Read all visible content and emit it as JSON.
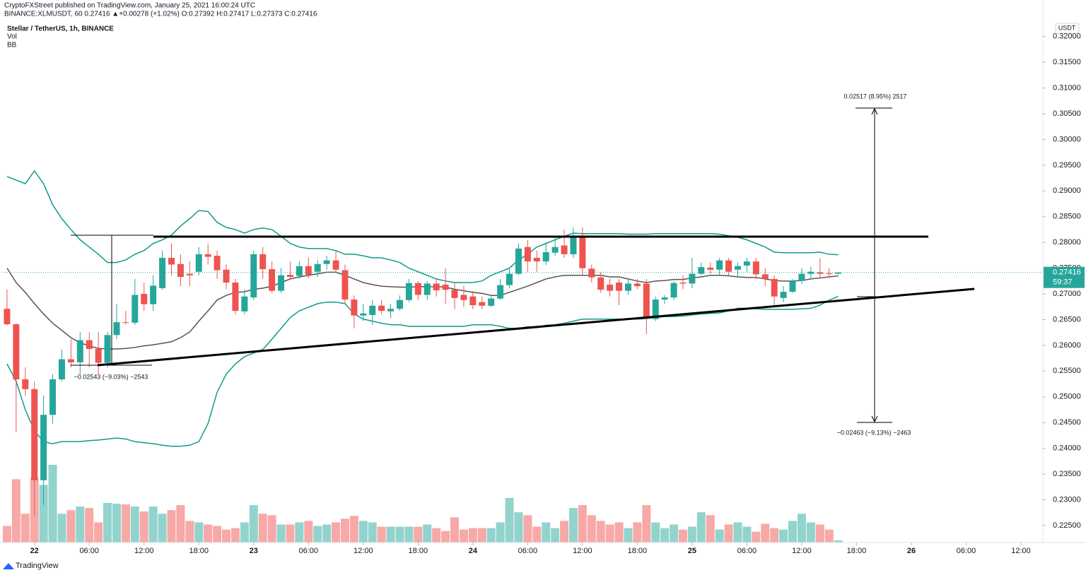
{
  "header": {
    "publisher": "CryptoFXStreet published on TradingView.com, January 25, 2021 16:00:24 UTC",
    "symbol_line": "BINANCE:XLMUSDT, 60  0.27416 ▲+0.00278 (+1.02%) O:0.27392 H:0.27417 L:0.27373 C:0.27416",
    "title": "Stellar / TetherUS, 1h, BINANCE",
    "indicators": [
      "Vol",
      "BB"
    ]
  },
  "chart_data": {
    "type": "candlestick",
    "currency": "USDT",
    "colors": {
      "up": "#26a69a",
      "down": "#ef5350",
      "volume_up": "#93d3cd",
      "volume_down": "#f7a9a7",
      "bands": "#0f9a8a",
      "basis": "#555555"
    },
    "open": [
      0.2671,
      0.2641,
      0.2534,
      0.2515,
      0.2338,
      0.2465,
      0.2534,
      0.2573,
      0.2567,
      0.261,
      0.2593,
      0.2566,
      0.262,
      0.2645,
      0.2644,
      0.27,
      0.268,
      0.2711,
      0.277,
      0.2758,
      0.2739,
      0.2743,
      0.2777,
      0.2774,
      0.2747,
      0.2722,
      0.2666,
      0.2693,
      0.2777,
      0.2748,
      0.2706,
      0.2737,
      0.2735,
      0.2754,
      0.2743,
      0.2758,
      0.2765,
      0.2746,
      0.2689,
      0.2658,
      0.2659,
      0.2677,
      0.2666,
      0.2671,
      0.2688,
      0.2721,
      0.2698,
      0.272,
      0.2718,
      0.2708,
      0.2698,
      0.2695,
      0.2684,
      0.2677,
      0.2691,
      0.2717,
      0.2739,
      0.2791,
      0.277,
      0.2763,
      0.278,
      0.2794,
      0.2777,
      0.2812,
      0.2749,
      0.2732,
      0.2718,
      0.2722,
      0.2706,
      0.272,
      0.272,
      0.2651,
      0.2689,
      0.2693,
      0.2722,
      0.272,
      0.2739,
      0.2751,
      0.2747,
      0.2765,
      0.2747,
      0.2755,
      0.2763,
      0.2738,
      0.2729,
      0.2692,
      0.2704,
      0.2725,
      0.2739,
      0.2742,
      0.274,
      0.27392
    ],
    "high": [
      0.2709,
      0.2643,
      0.2557,
      0.253,
      0.2503,
      0.2544,
      0.2592,
      0.2612,
      0.2626,
      0.2626,
      0.2626,
      0.2626,
      0.2681,
      0.2667,
      0.2729,
      0.2722,
      0.2736,
      0.2784,
      0.2798,
      0.2777,
      0.2764,
      0.2791,
      0.2798,
      0.2784,
      0.2757,
      0.2729,
      0.2709,
      0.2784,
      0.2791,
      0.2763,
      0.275,
      0.2763,
      0.2763,
      0.277,
      0.2766,
      0.2774,
      0.2784,
      0.2757,
      0.2697,
      0.2681,
      0.2688,
      0.2688,
      0.2681,
      0.2697,
      0.2729,
      0.2725,
      0.2725,
      0.2729,
      0.275,
      0.2722,
      0.2716,
      0.2706,
      0.2695,
      0.2695,
      0.2729,
      0.275,
      0.2798,
      0.2805,
      0.2784,
      0.2798,
      0.2812,
      0.2825,
      0.2829,
      0.2829,
      0.2757,
      0.2743,
      0.2729,
      0.2729,
      0.2729,
      0.2729,
      0.2729,
      0.2695,
      0.2698,
      0.2725,
      0.2736,
      0.277,
      0.2761,
      0.2761,
      0.277,
      0.277,
      0.2761,
      0.277,
      0.277,
      0.275,
      0.2736,
      0.2715,
      0.2729,
      0.275,
      0.2753,
      0.2769,
      0.275,
      0.27417
    ],
    "low": [
      0.2639,
      0.2431,
      0.2502,
      0.2269,
      0.229,
      0.2448,
      0.253,
      0.2557,
      0.2544,
      0.2557,
      0.2544,
      0.2557,
      0.2612,
      0.264,
      0.264,
      0.2667,
      0.2667,
      0.2708,
      0.2736,
      0.2715,
      0.2715,
      0.2736,
      0.2757,
      0.2729,
      0.2709,
      0.266,
      0.266,
      0.2688,
      0.2729,
      0.2702,
      0.2702,
      0.2729,
      0.2729,
      0.273,
      0.2733,
      0.2747,
      0.2743,
      0.2681,
      0.2633,
      0.2647,
      0.264,
      0.266,
      0.2653,
      0.2667,
      0.2684,
      0.2688,
      0.2688,
      0.2695,
      0.2681,
      0.267,
      0.2674,
      0.267,
      0.267,
      0.2674,
      0.2688,
      0.2711,
      0.2736,
      0.2743,
      0.2743,
      0.2756,
      0.2774,
      0.277,
      0.277,
      0.2736,
      0.2722,
      0.2702,
      0.2695,
      0.2678,
      0.2698,
      0.2709,
      0.2622,
      0.2647,
      0.2681,
      0.2688,
      0.2709,
      0.2711,
      0.2736,
      0.2739,
      0.2736,
      0.2736,
      0.2733,
      0.2743,
      0.2729,
      0.2715,
      0.2678,
      0.2684,
      0.2702,
      0.2719,
      0.2729,
      0.2729,
      0.2733,
      0.27373
    ],
    "close": [
      0.2641,
      0.2534,
      0.2515,
      0.2338,
      0.2465,
      0.2534,
      0.2573,
      0.2567,
      0.261,
      0.2593,
      0.2566,
      0.262,
      0.2645,
      0.2644,
      0.2698,
      0.268,
      0.2716,
      0.277,
      0.2757,
      0.2733,
      0.2736,
      0.2777,
      0.2772,
      0.2746,
      0.2722,
      0.2667,
      0.2695,
      0.2777,
      0.2748,
      0.2706,
      0.2736,
      0.2733,
      0.2754,
      0.2737,
      0.2758,
      0.2765,
      0.2747,
      0.2689,
      0.2658,
      0.2662,
      0.2677,
      0.2667,
      0.2671,
      0.2688,
      0.2721,
      0.2698,
      0.272,
      0.2707,
      0.2708,
      0.2692,
      0.2688,
      0.2678,
      0.2677,
      0.2691,
      0.2717,
      0.2739,
      0.2788,
      0.2763,
      0.2763,
      0.2781,
      0.2791,
      0.2777,
      0.2812,
      0.275,
      0.2732,
      0.2708,
      0.2706,
      0.2706,
      0.272,
      0.2715,
      0.2654,
      0.2689,
      0.2693,
      0.2721,
      0.272,
      0.2739,
      0.2752,
      0.2747,
      0.2765,
      0.2743,
      0.2754,
      0.2763,
      0.2738,
      0.2729,
      0.2695,
      0.2704,
      0.2725,
      0.2739,
      0.2743,
      0.2739,
      0.2739,
      0.27416
    ],
    "volume": [
      23,
      88,
      40,
      90,
      80,
      108,
      40,
      45,
      50,
      48,
      28,
      55,
      54,
      53,
      50,
      43,
      50,
      40,
      45,
      52,
      30,
      28,
      25,
      23,
      18,
      20,
      28,
      52,
      40,
      38,
      25,
      25,
      28,
      30,
      23,
      25,
      28,
      33,
      37,
      30,
      28,
      22,
      22,
      22,
      22,
      22,
      25,
      20,
      16,
      35,
      18,
      20,
      20,
      20,
      28,
      62,
      42,
      38,
      22,
      28,
      20,
      30,
      48,
      52,
      38,
      30,
      25,
      28,
      20,
      28,
      52,
      28,
      20,
      25,
      18,
      22,
      42,
      38,
      18,
      25,
      28,
      22,
      15,
      26,
      20,
      18,
      30,
      40,
      28,
      25,
      18,
      3
    ],
    "bb_upper": [
      0.2928,
      0.2921,
      0.2914,
      0.2939,
      0.2914,
      0.2873,
      0.2846,
      0.2825,
      0.2805,
      0.2791,
      0.2777,
      0.2761,
      0.2761,
      0.2766,
      0.2777,
      0.2784,
      0.2798,
      0.2805,
      0.2814,
      0.2832,
      0.2846,
      0.2862,
      0.286,
      0.2839,
      0.2829,
      0.2825,
      0.2818,
      0.2825,
      0.2828,
      0.2825,
      0.2812,
      0.2798,
      0.2791,
      0.2788,
      0.2788,
      0.2788,
      0.2784,
      0.2777,
      0.2777,
      0.2774,
      0.277,
      0.277,
      0.2766,
      0.2761,
      0.275,
      0.2743,
      0.2736,
      0.2729,
      0.2725,
      0.2722,
      0.2722,
      0.2722,
      0.2725,
      0.2736,
      0.2743,
      0.275,
      0.2766,
      0.2777,
      0.2791,
      0.2798,
      0.2805,
      0.2812,
      0.2818,
      0.2817,
      0.2817,
      0.2817,
      0.2817,
      0.2817,
      0.2816,
      0.2816,
      0.2816,
      0.2817,
      0.2817,
      0.2817,
      0.2817,
      0.2817,
      0.2817,
      0.2817,
      0.2816,
      0.2813,
      0.281,
      0.2805,
      0.2798,
      0.2791,
      0.2781,
      0.278,
      0.278,
      0.278,
      0.278,
      0.2781,
      0.2777,
      0.2776
    ],
    "bb_middle": [
      0.275,
      0.2722,
      0.2703,
      0.2681,
      0.2661,
      0.2643,
      0.2629,
      0.2615,
      0.2605,
      0.2599,
      0.2594,
      0.2593,
      0.2593,
      0.2594,
      0.2596,
      0.2599,
      0.2601,
      0.2604,
      0.2607,
      0.2615,
      0.2626,
      0.2647,
      0.2667,
      0.2688,
      0.2697,
      0.2703,
      0.2704,
      0.2709,
      0.2711,
      0.2715,
      0.2722,
      0.2729,
      0.2733,
      0.2736,
      0.2739,
      0.2742,
      0.2742,
      0.2736,
      0.2729,
      0.2722,
      0.2718,
      0.2715,
      0.2714,
      0.2713,
      0.2713,
      0.2714,
      0.2714,
      0.2714,
      0.2713,
      0.2709,
      0.2706,
      0.2703,
      0.2701,
      0.2697,
      0.2697,
      0.2703,
      0.2709,
      0.2715,
      0.2722,
      0.2729,
      0.2733,
      0.2736,
      0.2736,
      0.2736,
      0.2736,
      0.2736,
      0.2733,
      0.2733,
      0.2729,
      0.2725,
      0.2722,
      0.2725,
      0.2726,
      0.2728,
      0.2728,
      0.2731,
      0.2733,
      0.2736,
      0.2736,
      0.2735,
      0.2733,
      0.2732,
      0.2732,
      0.2729,
      0.2726,
      0.2725,
      0.2725,
      0.2726,
      0.2729,
      0.2731,
      0.2733,
      0.2735
    ],
    "bb_lower": [
      0.2564,
      0.253,
      0.2475,
      0.2434,
      0.2413,
      0.2409,
      0.2413,
      0.2413,
      0.2413,
      0.2415,
      0.2416,
      0.2418,
      0.242,
      0.2418,
      0.2413,
      0.2411,
      0.2409,
      0.2406,
      0.2404,
      0.2404,
      0.2406,
      0.2413,
      0.2448,
      0.2509,
      0.2544,
      0.2564,
      0.2578,
      0.2585,
      0.2592,
      0.2612,
      0.2633,
      0.2654,
      0.2667,
      0.2674,
      0.2681,
      0.2684,
      0.2684,
      0.2681,
      0.2661,
      0.2651,
      0.2647,
      0.2643,
      0.264,
      0.264,
      0.2637,
      0.2637,
      0.2637,
      0.2637,
      0.2637,
      0.2637,
      0.2637,
      0.264,
      0.264,
      0.264,
      0.2637,
      0.2633,
      0.2633,
      0.2636,
      0.2636,
      0.2639,
      0.264,
      0.2643,
      0.2647,
      0.2651,
      0.2651,
      0.2651,
      0.2651,
      0.2651,
      0.2651,
      0.2651,
      0.2652,
      0.2654,
      0.2656,
      0.2656,
      0.2657,
      0.2659,
      0.2661,
      0.2662,
      0.2663,
      0.2667,
      0.2672,
      0.2672,
      0.2671,
      0.267,
      0.267,
      0.267,
      0.267,
      0.2671,
      0.2672,
      0.2678,
      0.2688,
      0.2695
    ],
    "ylim": [
      0.2217,
      0.3227
    ],
    "yticks": [
      {
        "value": 0.32,
        "label": "0.32000"
      },
      {
        "value": 0.315,
        "label": "0.31500"
      },
      {
        "value": 0.31,
        "label": "0.31000"
      },
      {
        "value": 0.305,
        "label": "0.30500"
      },
      {
        "value": 0.3,
        "label": "0.30000"
      },
      {
        "value": 0.295,
        "label": "0.29500"
      },
      {
        "value": 0.29,
        "label": "0.29000"
      },
      {
        "value": 0.285,
        "label": "0.28500"
      },
      {
        "value": 0.28,
        "label": "0.28000"
      },
      {
        "value": 0.275,
        "label": "0.27500"
      },
      {
        "value": 0.27,
        "label": "0.27000"
      },
      {
        "value": 0.265,
        "label": "0.26500"
      },
      {
        "value": 0.26,
        "label": "0.26000"
      },
      {
        "value": 0.255,
        "label": "0.25500"
      },
      {
        "value": 0.25,
        "label": "0.25000"
      },
      {
        "value": 0.245,
        "label": "0.24500"
      },
      {
        "value": 0.24,
        "label": "0.24000"
      },
      {
        "value": 0.235,
        "label": "0.23500"
      },
      {
        "value": 0.23,
        "label": "0.23000"
      },
      {
        "value": 0.225,
        "label": "0.22500"
      }
    ],
    "xlim": [
      -0.46,
      113.4
    ],
    "xticks": [
      {
        "value": 3,
        "label": "22"
      },
      {
        "value": 9,
        "label": "06:00"
      },
      {
        "value": 15,
        "label": "12:00"
      },
      {
        "value": 21,
        "label": "18:00"
      },
      {
        "value": 27,
        "label": "23"
      },
      {
        "value": 33,
        "label": "06:00"
      },
      {
        "value": 39,
        "label": "12:00"
      },
      {
        "value": 45,
        "label": "18:00"
      },
      {
        "value": 51,
        "label": "24"
      },
      {
        "value": 57,
        "label": "06:00"
      },
      {
        "value": 63,
        "label": "12:00"
      },
      {
        "value": 69,
        "label": "18:00"
      },
      {
        "value": 75,
        "label": "25"
      },
      {
        "value": 81,
        "label": "06:00"
      },
      {
        "value": 87,
        "label": "12:00"
      },
      {
        "value": 93,
        "label": "18:00"
      },
      {
        "value": 99,
        "label": "26"
      },
      {
        "value": 105,
        "label": "06:00"
      },
      {
        "value": 111,
        "label": "12:00"
      }
    ],
    "last_price": 0.27416,
    "countdown": "59:37",
    "annotations": [
      "0.02517 (8.95%) 2517",
      "−0.02463 (−9.13%) −2463",
      "−0.02543 (−9.03%) −2543"
    ]
  },
  "footer": {
    "brand": "TradingView"
  }
}
